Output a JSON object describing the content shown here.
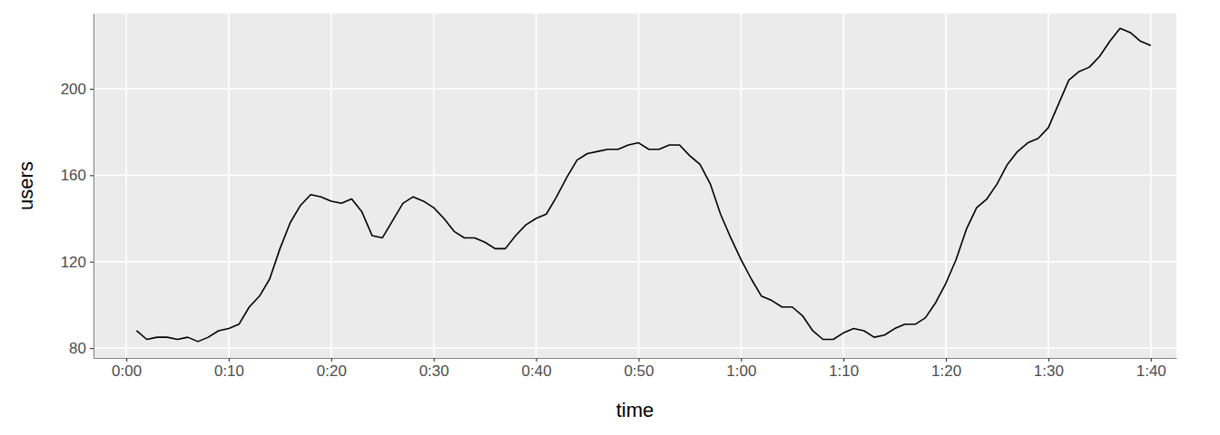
{
  "chart_data": {
    "type": "line",
    "x_label": "time",
    "y_label": "users",
    "x": [
      1,
      2,
      3,
      4,
      5,
      6,
      7,
      8,
      9,
      10,
      11,
      12,
      13,
      14,
      15,
      16,
      17,
      18,
      19,
      20,
      21,
      22,
      23,
      24,
      25,
      26,
      27,
      28,
      29,
      30,
      31,
      32,
      33,
      34,
      35,
      36,
      37,
      38,
      39,
      40,
      41,
      42,
      43,
      44,
      45,
      46,
      47,
      48,
      49,
      50,
      51,
      52,
      53,
      54,
      55,
      56,
      57,
      58,
      59,
      60,
      61,
      62,
      63,
      64,
      65,
      66,
      67,
      68,
      69,
      70,
      71,
      72,
      73,
      74,
      75,
      76,
      77,
      78,
      79,
      80,
      81,
      82,
      83,
      84,
      85,
      86,
      87,
      88,
      89,
      90,
      91,
      92,
      93,
      94,
      95,
      96,
      97,
      98,
      99,
      100
    ],
    "values": [
      88,
      84,
      85,
      85,
      84,
      85,
      83,
      85,
      88,
      89,
      91,
      99,
      104,
      112,
      126,
      138,
      146,
      151,
      150,
      148,
      147,
      149,
      143,
      132,
      131,
      139,
      147,
      150,
      148,
      145,
      140,
      134,
      131,
      131,
      129,
      126,
      126,
      132,
      137,
      140,
      142,
      150,
      159,
      167,
      170,
      171,
      172,
      172,
      174,
      175,
      172,
      172,
      174,
      174,
      169,
      165,
      156,
      142,
      131,
      121,
      112,
      104,
      102,
      99,
      99,
      95,
      88,
      84,
      84,
      87,
      89,
      88,
      85,
      86,
      89,
      91,
      91,
      94,
      101,
      110,
      121,
      135,
      145,
      149,
      156,
      165,
      171,
      175,
      177,
      182,
      193,
      204,
      208,
      210,
      215,
      222,
      228,
      226,
      222,
      220
    ],
    "color": "#000000",
    "xlim": [
      -3.2,
      102.5
    ],
    "xticks": [
      {
        "value": 0,
        "label": "0:00"
      },
      {
        "value": 10,
        "label": "0:10"
      },
      {
        "value": 20,
        "label": "0:20"
      },
      {
        "value": 30,
        "label": "0:30"
      },
      {
        "value": 40,
        "label": "0:40"
      },
      {
        "value": 50,
        "label": "0:50"
      },
      {
        "value": 60,
        "label": "1:00"
      },
      {
        "value": 70,
        "label": "1:10"
      },
      {
        "value": 80,
        "label": "1:20"
      },
      {
        "value": 90,
        "label": "1:30"
      },
      {
        "value": 100,
        "label": "1:40"
      }
    ],
    "ylim": [
      75.4,
      234.8
    ],
    "yticks": [
      80,
      120,
      160,
      200
    ],
    "grid": true
  }
}
